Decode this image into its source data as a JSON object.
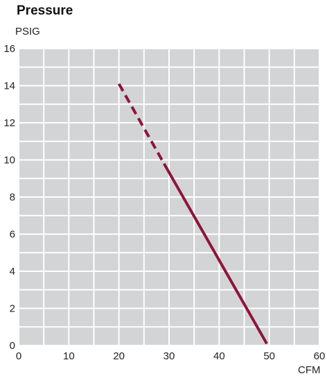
{
  "chart_data": {
    "type": "line",
    "title": "Pressure",
    "ylabel": "PSIG",
    "xlabel": "CFM",
    "xlim": [
      0,
      60
    ],
    "ylim": [
      0,
      16
    ],
    "xticks": [
      0,
      10,
      20,
      30,
      40,
      50,
      60
    ],
    "yticks": [
      0,
      2,
      4,
      6,
      8,
      10,
      12,
      14,
      16
    ],
    "grid": true,
    "series": [
      {
        "color": "#8e1538",
        "segments": [
          {
            "style": "dashed",
            "points": [
              [
                20,
                14.1
              ],
              [
                29,
                9.8
              ]
            ]
          },
          {
            "style": "solid",
            "points": [
              [
                29,
                9.8
              ],
              [
                49.5,
                0.1
              ]
            ]
          }
        ]
      }
    ]
  }
}
